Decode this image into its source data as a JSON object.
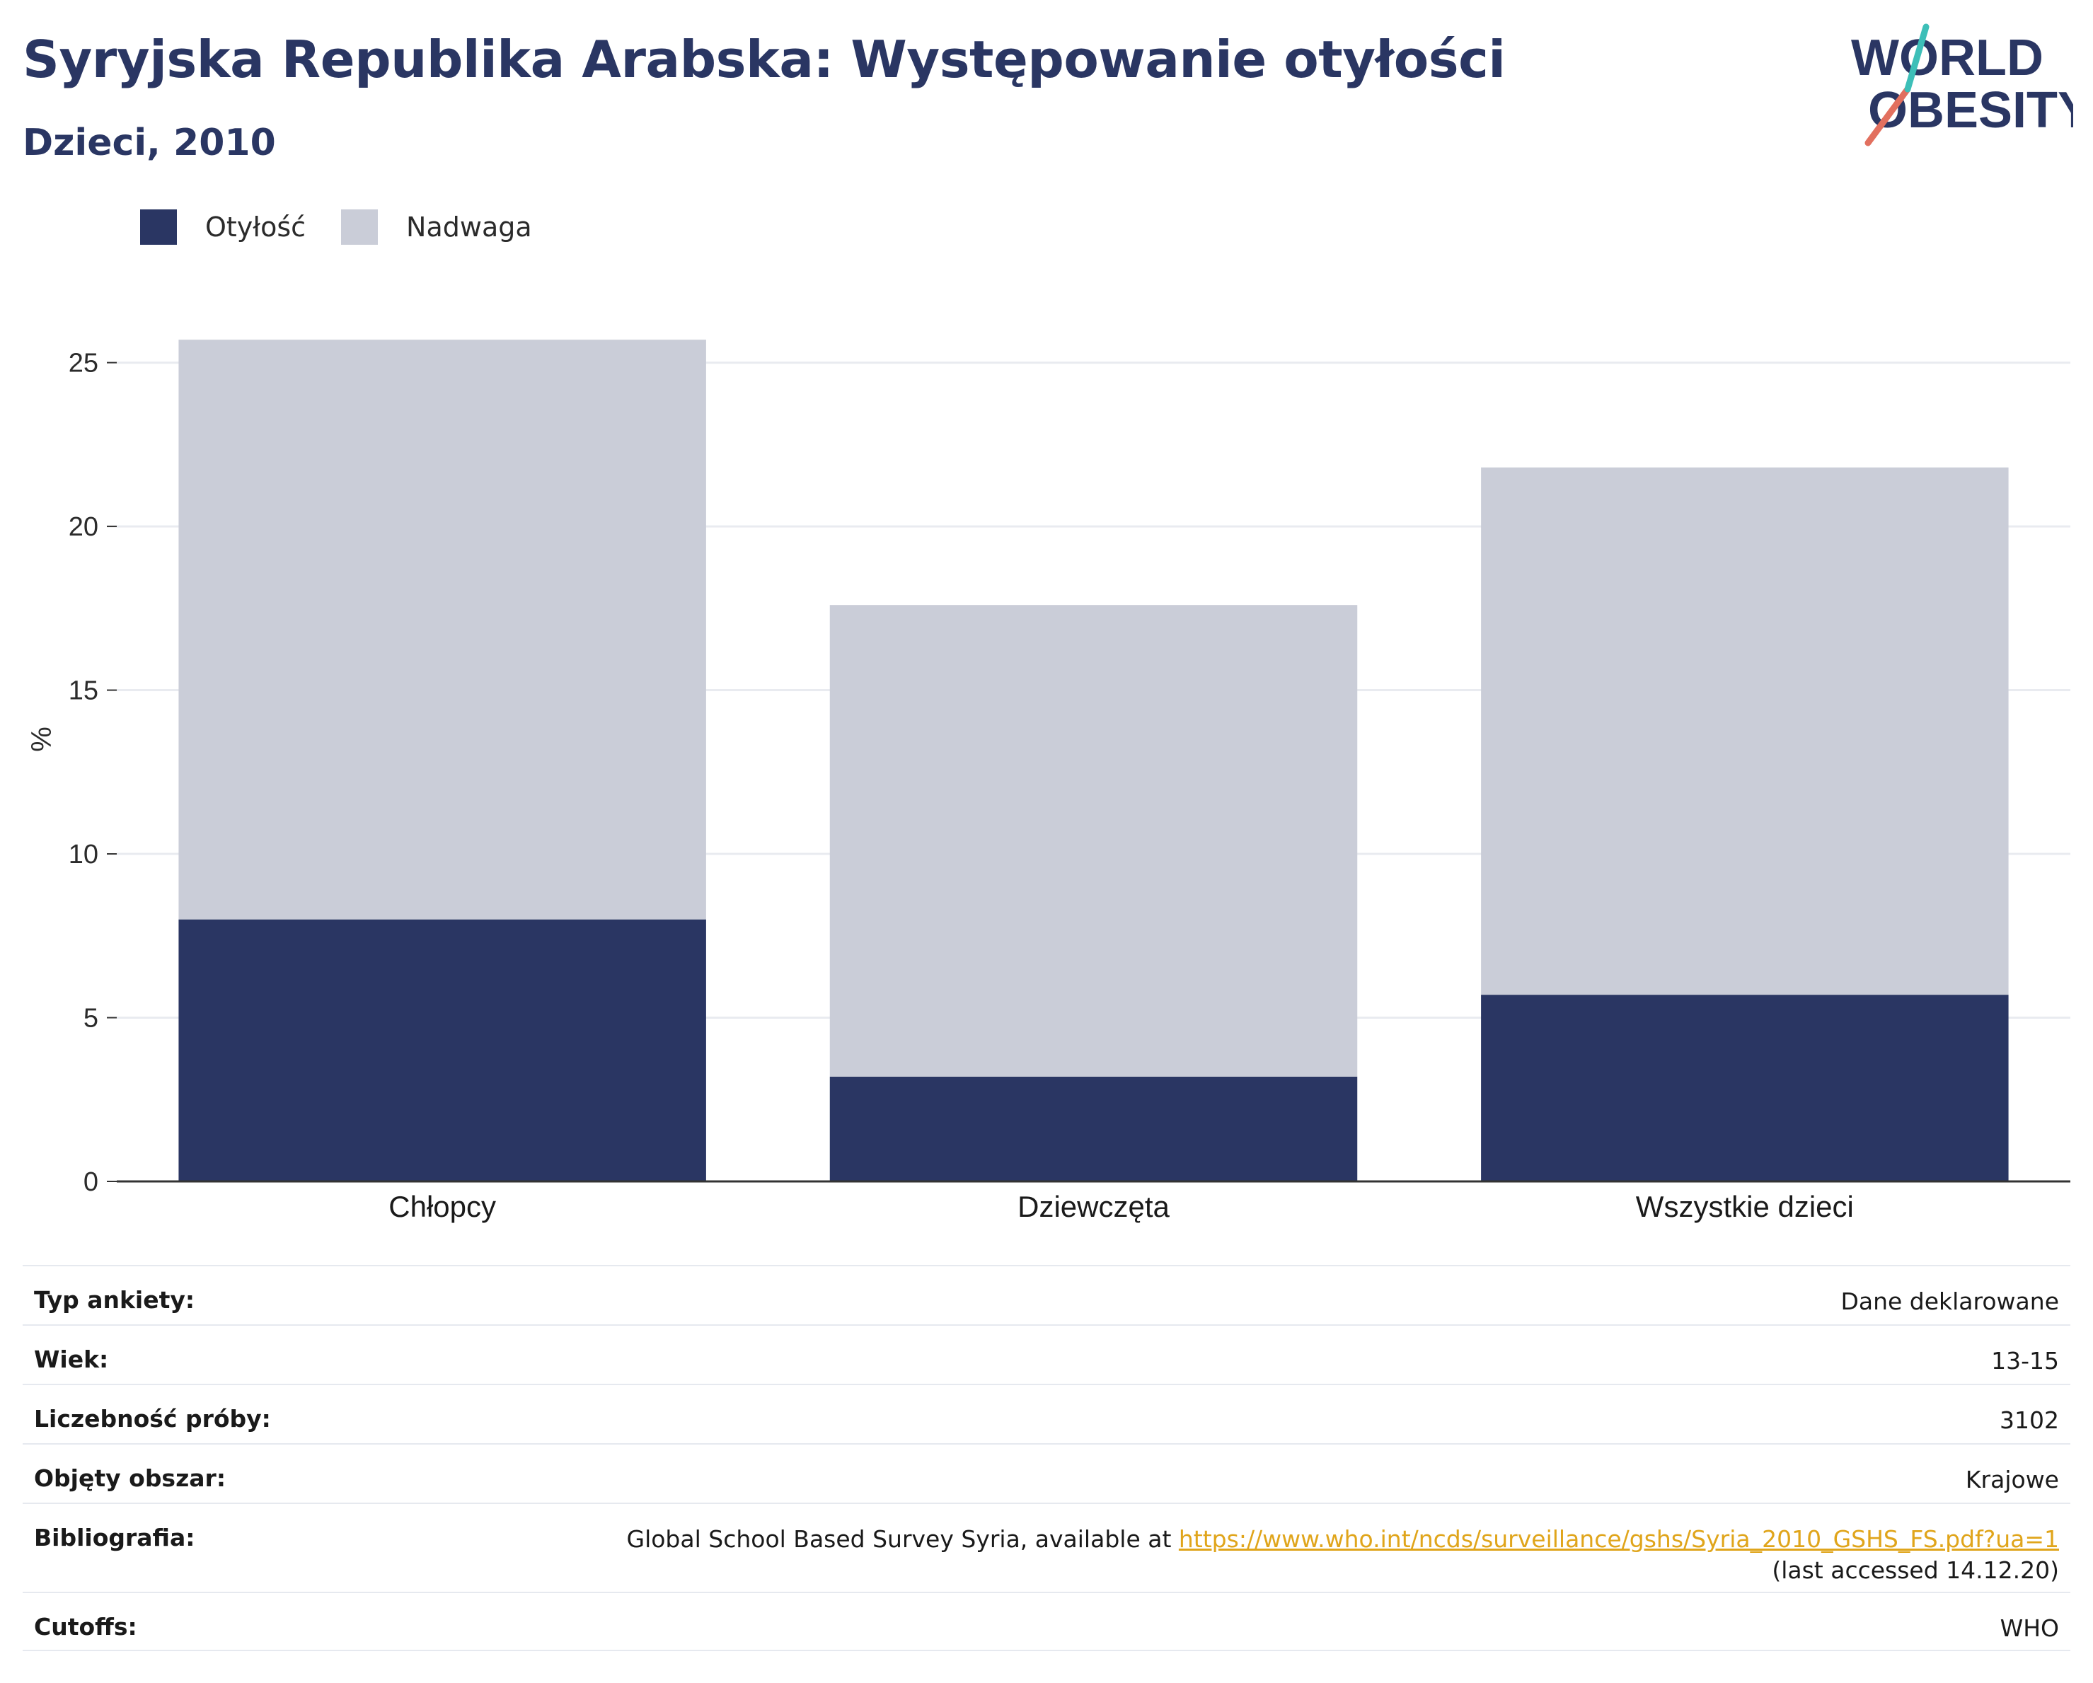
{
  "header": {
    "title": "Syryjska Republika Arabska: Występowanie otyłości",
    "subtitle": "Dzieci, 2010"
  },
  "logo": {
    "line1": "WORLD",
    "line2": "OBESITY"
  },
  "colors": {
    "obesity": "#2a3663",
    "overweight": "#cacdd8",
    "text": "#2a3663",
    "link": "#e0a51b",
    "logo_teal": "#3dbfb8",
    "logo_coral": "#e2705f"
  },
  "legend": {
    "items": [
      {
        "label": "Otyłość",
        "color": "#2a3663"
      },
      {
        "label": "Nadwaga",
        "color": "#cacdd8"
      }
    ]
  },
  "chart_data": {
    "type": "bar",
    "stacked": true,
    "categories": [
      "Chłopcy",
      "Dziewczęta",
      "Wszystkie dzieci"
    ],
    "series": [
      {
        "name": "Otyłość",
        "values": [
          8.0,
          3.2,
          5.7
        ]
      },
      {
        "name": "Nadwaga",
        "values": [
          17.7,
          14.4,
          16.1
        ]
      }
    ],
    "ylabel": "%",
    "ylim": [
      0,
      27
    ],
    "yticks": [
      0,
      5,
      10,
      15,
      20,
      25
    ],
    "grid": true
  },
  "info": [
    {
      "key": "Typ ankiety:",
      "value": "Dane deklarowane"
    },
    {
      "key": "Wiek:",
      "value": "13-15"
    },
    {
      "key": "Liczebność próby:",
      "value": "3102"
    },
    {
      "key": "Objęty obszar:",
      "value": "Krajowe"
    },
    {
      "key": "Bibliografia:",
      "value_before": "Global School Based Survey Syria, available at ",
      "link": "https://www.who.int/ncds/surveillance/gshs/Syria_2010_GSHS_FS.pdf?ua=1",
      "value_after": " (last accessed 14.12.20)"
    },
    {
      "key": "Cutoffs:",
      "value": "WHO"
    }
  ]
}
